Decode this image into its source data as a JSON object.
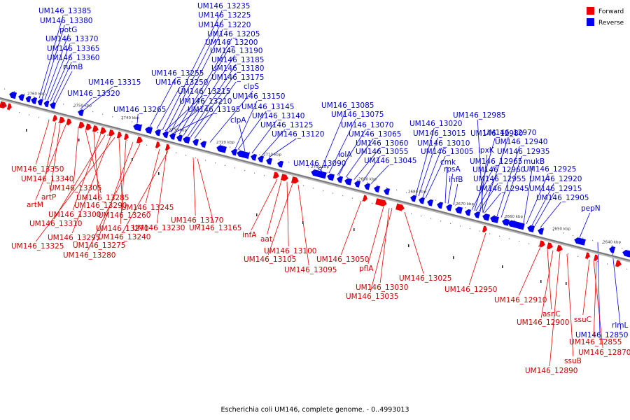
{
  "caption": "Escherichia coli UM146, complete genome. - 0..4993013",
  "legend": [
    {
      "label": "Forward",
      "color": "#ee0000"
    },
    {
      "label": "Reverse",
      "color": "#0000ee"
    }
  ],
  "colors": {
    "forward": "#ee0000",
    "reverse": "#0000ee",
    "forward_label": "#cc0000",
    "reverse_label": "#0000cc",
    "axis": "#777777"
  },
  "ticks": [
    "2760 kbp",
    "2750 kbp",
    "2740 kbp",
    "2730 kbp",
    "2720 kbp",
    "2710 kbp",
    "2700 kbp",
    "2690 kbp",
    "2680 kbp",
    "2670 kbp",
    "2660 kbp",
    "2650 kbp",
    "2640 kbp"
  ],
  "reverse_labels": [
    "UM146_13385",
    "UM146_13380",
    "potG",
    "UM146_13370",
    "UM146_13365",
    "UM146_13360",
    "rumB",
    "UM146_13315",
    "UM146_13320",
    "UM146_13265",
    "UM146_13255",
    "UM146_13250",
    "UM146_13235",
    "UM146_13225",
    "UM146_13220",
    "UM146_13205",
    "UM146_13200",
    "UM146_13190",
    "UM146_13185",
    "UM146_13180",
    "UM146_13175",
    "clpS",
    "UM146_13150",
    "UM146_13215",
    "UM146_13210",
    "UM146_13195",
    "UM146_13145",
    "clpA",
    "UM146_13140",
    "UM146_13125",
    "UM146_13120",
    "UM146_13085",
    "UM146_13075",
    "UM146_13070",
    "UM146_13065",
    "UM146_13060",
    "UM146_13055",
    "lolA",
    "UM146_13045",
    "UM146_13090",
    "UM146_12985",
    "UM146_13020",
    "UM146_12980",
    "UM146_13015",
    "UM146_12970",
    "UM146_13010",
    "UM146_12940",
    "UM146_13005",
    "lpxK",
    "UM146_12935",
    "cmk",
    "UM146_12965",
    "mukB",
    "rpsA",
    "UM146_12960",
    "UM146_12925",
    "ihfB",
    "UM146_12955",
    "UM146_12920",
    "UM146_12945",
    "UM146_12915",
    "UM146_12905",
    "pepN",
    "rlmL",
    "UM146_12850"
  ],
  "forward_labels": [
    "UM146_13350",
    "UM146_13340",
    "artP",
    "artM",
    "UM146_13305",
    "UM146_13285",
    "UM146_13290",
    "UM146_13300",
    "UM146_13310",
    "UM146_13295",
    "UM146_13325",
    "UM146_13260",
    "UM146_13270",
    "UM146_13275",
    "UM146_13280",
    "UM146_13245",
    "UM146_13230",
    "UM146_13240",
    "UM146_13170",
    "UM146_13165",
    "infA",
    "aat",
    "UM146_13100",
    "UM146_13105",
    "UM146_13095",
    "UM146_13050",
    "pflA",
    "UM146_13030",
    "UM146_13035",
    "UM146_13025",
    "UM146_12950",
    "UM146_12910",
    "asnC",
    "UM146_12900",
    "ssuC",
    "UM146_12855",
    "UM146_12870",
    "ssuB",
    "UM146_12890"
  ]
}
